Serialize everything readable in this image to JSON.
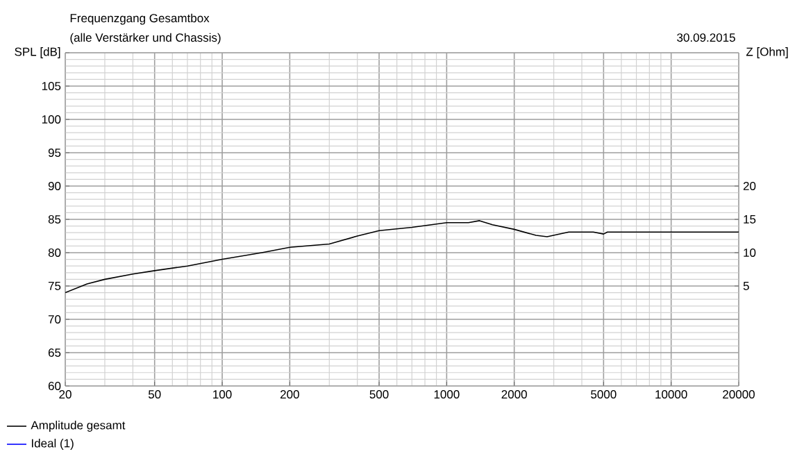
{
  "chart_data": {
    "type": "line",
    "title": "Frequenzgang Gesamtbox",
    "subtitle": "(alle Verstärker und Chassis)",
    "ylabel": "SPL [dB]",
    "y2label": "Z [Ohm]",
    "annotations": [
      "30.09.2015"
    ],
    "log": "x",
    "xlim": [
      20,
      20000
    ],
    "xticks": [
      20,
      50,
      100,
      200,
      500,
      1000,
      2000,
      5000,
      10000,
      20000
    ],
    "ylim": [
      60,
      110
    ],
    "yticks": [
      60,
      65,
      70,
      75,
      80,
      85,
      90,
      95,
      100,
      105,
      {
        "value": 110,
        "label": null
      }
    ],
    "y2lim": [
      -10,
      40
    ],
    "y2ticks": [
      5,
      10,
      15,
      20
    ],
    "grid": true,
    "legend": "bottom left",
    "marker": "none",
    "line_style": "solid",
    "series": [
      {
        "name": "Amplitude gesamt",
        "color": "#000000",
        "x": [
          20,
          25,
          30,
          40,
          50,
          70,
          100,
          150,
          200,
          300,
          400,
          500,
          700,
          1000,
          1250,
          1400,
          1600,
          2000,
          2500,
          2800,
          3500,
          4500,
          5000,
          5200,
          10000,
          20000
        ],
        "values": [
          74,
          75.3,
          76,
          76.8,
          77.3,
          78,
          79,
          80,
          80.8,
          81.3,
          82.5,
          83.3,
          83.8,
          84.5,
          84.5,
          84.8,
          84.2,
          83.5,
          82.6,
          82.4,
          83.1,
          83.1,
          82.8,
          83.1,
          83.1,
          83.1
        ]
      },
      {
        "name": "Ideal (1)",
        "color": "#0000ff"
      }
    ]
  }
}
